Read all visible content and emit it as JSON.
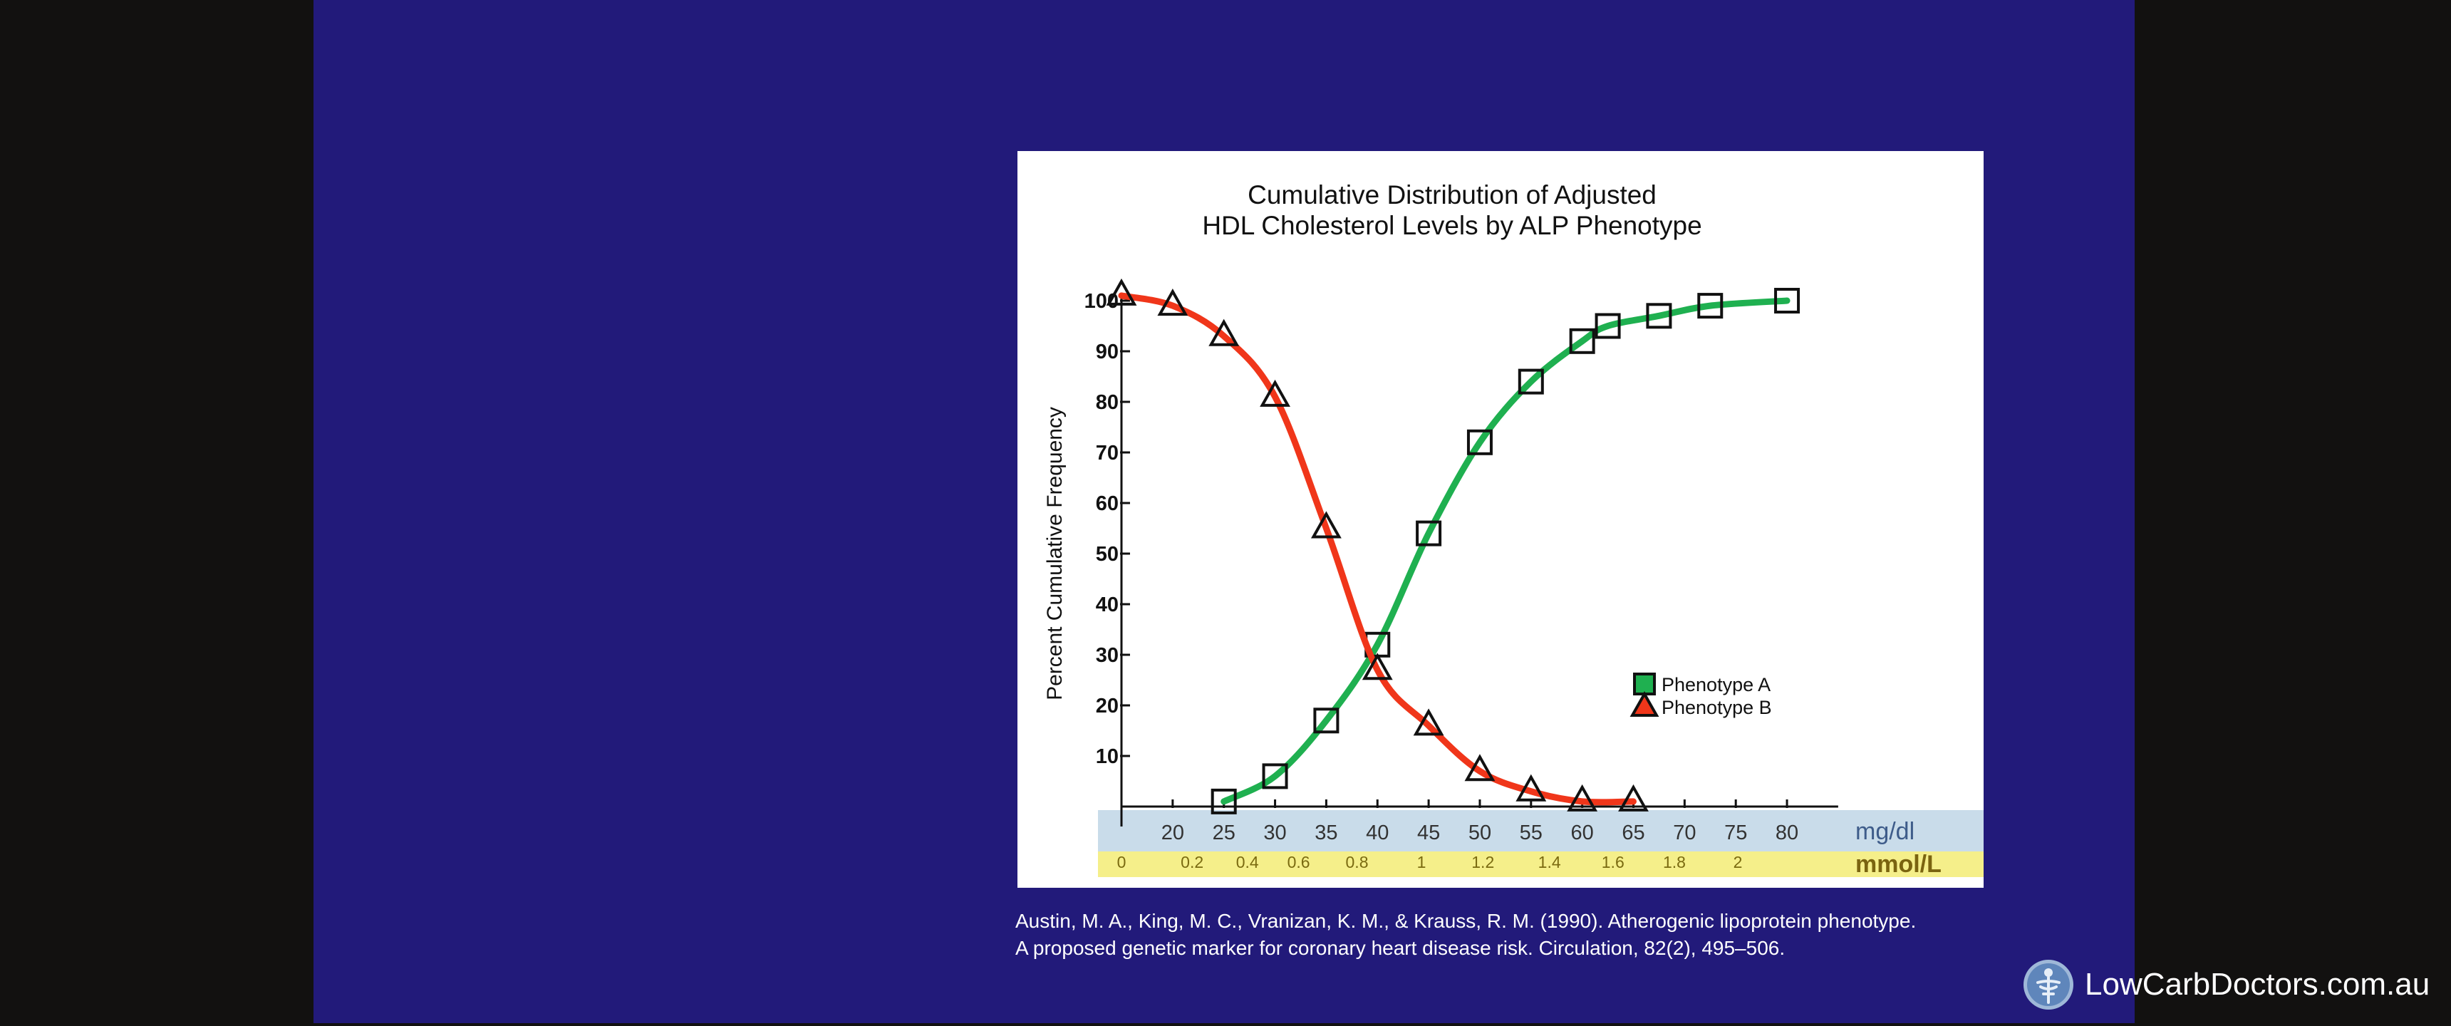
{
  "chart_data": {
    "type": "line",
    "title_lines": [
      "Cumulative Distribution of Adjusted",
      "HDL Cholesterol Levels by ALP Phenotype"
    ],
    "ylabel": "Percent Cumulative Frequency",
    "xunit_primary": "mg/dl",
    "xunit_secondary": "mmol/L",
    "xlim": [
      15,
      85
    ],
    "ylim": [
      0,
      100
    ],
    "y_ticks": [
      "10",
      "20",
      "30",
      "40",
      "50",
      "60",
      "70",
      "80",
      "90",
      "100"
    ],
    "x_ticks": [
      20,
      25,
      30,
      35,
      40,
      45,
      50,
      55,
      60,
      65,
      70,
      75,
      80
    ],
    "x_tick_labels": [
      "20",
      "25",
      "30",
      "35",
      "40",
      "45",
      "50",
      "55",
      "60",
      "65",
      "70",
      "75",
      "80"
    ],
    "x_secondary_ticks": [
      {
        "mgdl": 15,
        "label": "0"
      },
      {
        "mgdl": 21.9,
        "label": "0.2"
      },
      {
        "mgdl": 27.3,
        "label": "0.4"
      },
      {
        "mgdl": 32.3,
        "label": "0.6"
      },
      {
        "mgdl": 38.0,
        "label": "0.8"
      },
      {
        "mgdl": 44.3,
        "label": "1"
      },
      {
        "mgdl": 50.3,
        "label": "1.2"
      },
      {
        "mgdl": 56.8,
        "label": "1.4"
      },
      {
        "mgdl": 63.0,
        "label": "1.6"
      },
      {
        "mgdl": 69.0,
        "label": "1.8"
      },
      {
        "mgdl": 75.2,
        "label": "2"
      }
    ],
    "legend_position": "right-center",
    "series": [
      {
        "name": "Phenotype A",
        "color": "#1fb050",
        "marker": "square",
        "points": [
          [
            25,
            1
          ],
          [
            30,
            6
          ],
          [
            35,
            17
          ],
          [
            40,
            32
          ],
          [
            45,
            54
          ],
          [
            50,
            72
          ],
          [
            55,
            84
          ],
          [
            60,
            92
          ],
          [
            62.5,
            95
          ],
          [
            67.5,
            97
          ],
          [
            72.5,
            99
          ],
          [
            80,
            100
          ]
        ]
      },
      {
        "name": "Phenotype B",
        "color": "#f0361a",
        "marker": "triangle",
        "points": [
          [
            15,
            101
          ],
          [
            20,
            99
          ],
          [
            25,
            93
          ],
          [
            30,
            81
          ],
          [
            35,
            55
          ],
          [
            40,
            27
          ],
          [
            45,
            16
          ],
          [
            50,
            7
          ],
          [
            55,
            3
          ],
          [
            60,
            1
          ],
          [
            65,
            1
          ]
        ]
      }
    ]
  },
  "citation": {
    "line1": "Austin, M. A., King, M. C., Vranizan, K. M., & Krauss, R. M. (1990). Atherogenic lipoprotein phenotype.",
    "line2": "A proposed genetic marker for coronary heart disease risk. Circulation, 82(2), 495–506."
  },
  "brand": {
    "text": "LowCarbDoctors.com.au"
  }
}
